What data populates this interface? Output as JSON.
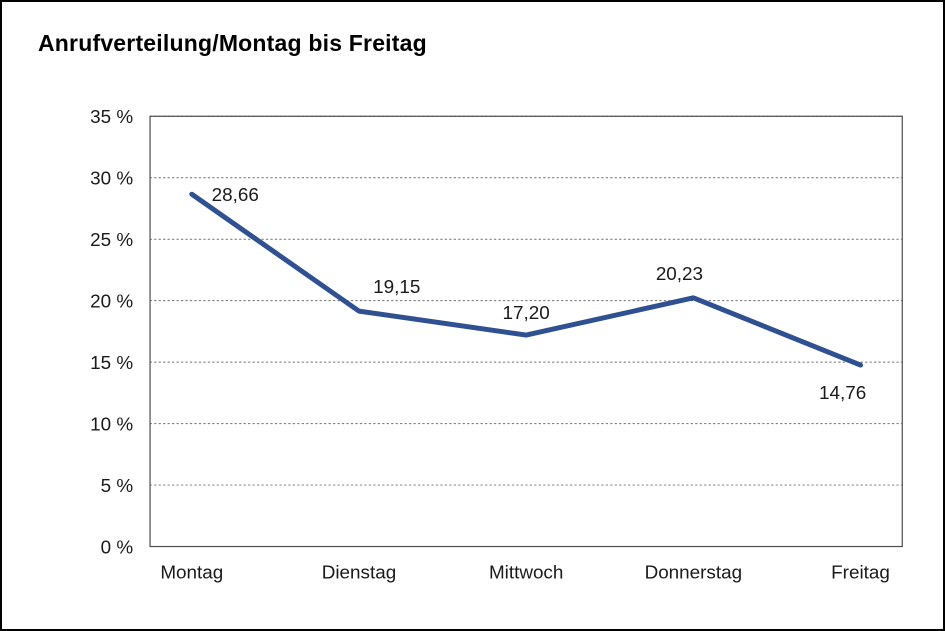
{
  "page": {
    "background": "#ffffff",
    "border_color": "#000000"
  },
  "chart_data": {
    "type": "line",
    "title": "Anrufverteilung/Montag bis Freitag",
    "categories": [
      "Montag",
      "Dienstag",
      "Mittwoch",
      "Donnerstag",
      "Freitag"
    ],
    "values": [
      28.66,
      19.15,
      17.2,
      20.23,
      14.76
    ],
    "value_labels": [
      "28,66",
      "19,15",
      "17,20",
      "20,23",
      "14,76"
    ],
    "label_placements": [
      "right",
      "above-right",
      "above",
      "above-left",
      "below-left"
    ],
    "xlabel": "",
    "ylabel": "",
    "ylim": [
      0,
      35
    ],
    "y_tick_step": 5,
    "y_tick_labels": [
      "0 %",
      "5 %",
      "10 %",
      "15 %",
      "20 %",
      "25 %",
      "30 %",
      "35 %"
    ],
    "grid": "horizontal-dotted",
    "legend": "none",
    "line_color": "#2f5191",
    "line_width": 5
  }
}
